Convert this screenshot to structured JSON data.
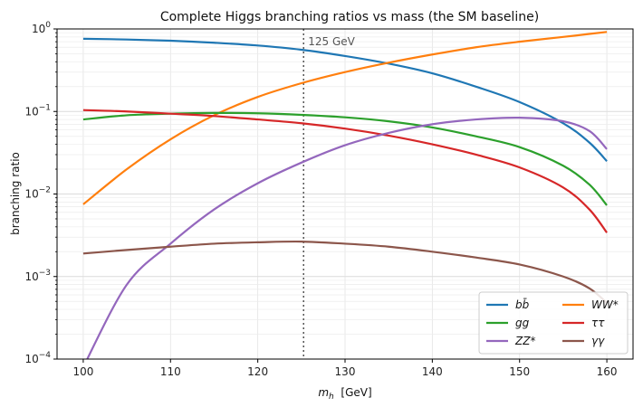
{
  "chart_data": {
    "type": "line",
    "title": "Complete Higgs branching ratios vs mass (the SM baseline)",
    "xlabel": "m_h [GeV]",
    "xlabel_main": "m",
    "xlabel_sub": "h",
    "xlabel_unit": "[GeV]",
    "ylabel": "branching ratio",
    "xlim": [
      97,
      163
    ],
    "ylim": [
      0.0001,
      1
    ],
    "yscale": "log",
    "grid": true,
    "legend_position": "lower-right",
    "x_ticks": [
      100,
      110,
      120,
      130,
      140,
      150,
      160
    ],
    "y_ticks": [
      {
        "value": 0.0001,
        "base": "10",
        "exp": "−4"
      },
      {
        "value": 0.001,
        "base": "10",
        "exp": "−3"
      },
      {
        "value": 0.01,
        "base": "10",
        "exp": "−2"
      },
      {
        "value": 0.1,
        "base": "10",
        "exp": "−1"
      },
      {
        "value": 1,
        "base": "10",
        "exp": "0"
      }
    ],
    "annotation": {
      "x": 125.25,
      "label": "125 GeV"
    },
    "x": [
      100,
      105,
      110,
      115,
      120,
      125,
      130,
      135,
      140,
      145,
      150,
      155,
      158,
      160
    ],
    "series": [
      {
        "name": "bb̄",
        "color": "#1f77b4",
        "values": [
          0.76,
          0.745,
          0.72,
          0.68,
          0.63,
          0.56,
          0.47,
          0.38,
          0.29,
          0.2,
          0.13,
          0.072,
          0.042,
          0.025
        ]
      },
      {
        "name": "WW*",
        "color": "#ff7f0e",
        "values": [
          0.0075,
          0.02,
          0.046,
          0.09,
          0.15,
          0.22,
          0.3,
          0.39,
          0.49,
          0.6,
          0.7,
          0.8,
          0.87,
          0.92
        ]
      },
      {
        "name": "gg",
        "color": "#2ca02c",
        "values": [
          0.08,
          0.09,
          0.094,
          0.096,
          0.095,
          0.091,
          0.085,
          0.076,
          0.064,
          0.05,
          0.037,
          0.022,
          0.013,
          0.0073
        ]
      },
      {
        "name": "ττ",
        "color": "#d62728",
        "values": [
          0.104,
          0.1,
          0.094,
          0.088,
          0.08,
          0.072,
          0.062,
          0.051,
          0.04,
          0.03,
          0.021,
          0.012,
          0.0065,
          0.0034
        ]
      },
      {
        "name": "ZZ*",
        "color": "#9467bd",
        "values": [
          8e-05,
          0.0008,
          0.0025,
          0.0065,
          0.0135,
          0.024,
          0.039,
          0.055,
          0.07,
          0.08,
          0.084,
          0.076,
          0.058,
          0.035
        ]
      },
      {
        "name": "γγ",
        "color": "#8c564b",
        "values": [
          0.0019,
          0.0021,
          0.0023,
          0.0025,
          0.0026,
          0.00265,
          0.0025,
          0.0023,
          0.002,
          0.0017,
          0.0014,
          0.001,
          0.00072,
          0.00048
        ]
      }
    ]
  }
}
